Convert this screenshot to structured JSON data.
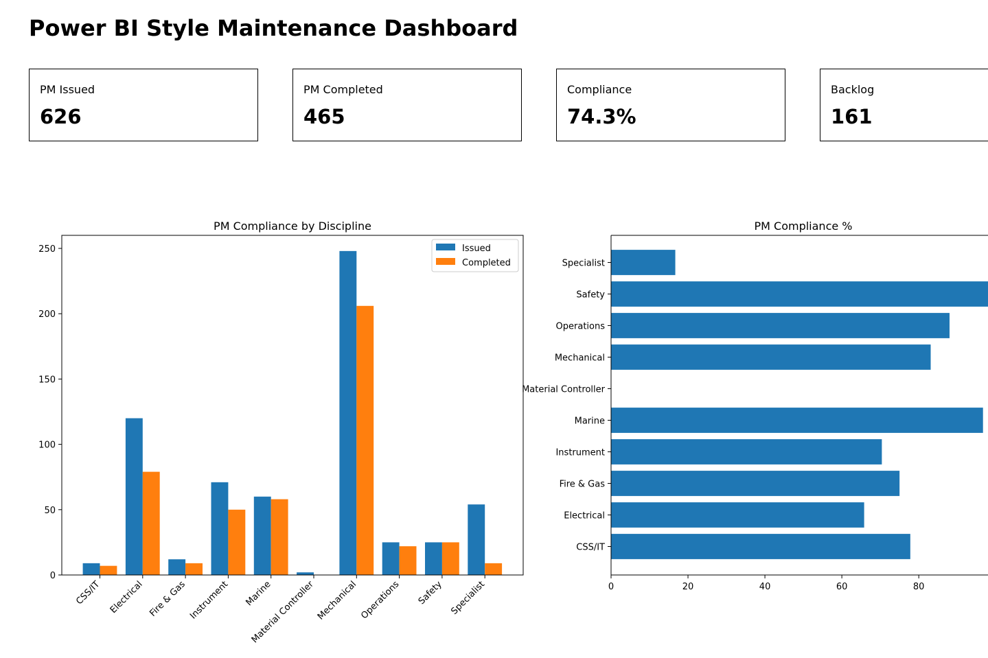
{
  "dashboard": {
    "title": "Power BI Style Maintenance Dashboard",
    "kpis": [
      {
        "label": "PM Issued",
        "value": "626"
      },
      {
        "label": "PM Completed",
        "value": "465"
      },
      {
        "label": "Compliance",
        "value": "74.3%"
      },
      {
        "label": "Backlog",
        "value": "161"
      }
    ]
  },
  "colors": {
    "issued": "#1f77b4",
    "completed": "#ff7f0e"
  },
  "chart_data": [
    {
      "type": "bar",
      "title": "PM Compliance by Discipline",
      "xlabel": "",
      "ylabel": "",
      "categories": [
        "CSS/IT",
        "Electrical",
        "Fire & Gas",
        "Instrument",
        "Marine",
        "Material Controller",
        "Mechanical",
        "Operations",
        "Safety",
        "Specialist"
      ],
      "series": [
        {
          "name": "Issued",
          "values": [
            9,
            120,
            12,
            71,
            60,
            2,
            248,
            25,
            25,
            54
          ]
        },
        {
          "name": "Completed",
          "values": [
            7,
            79,
            9,
            50,
            58,
            0,
            206,
            22,
            25,
            9
          ]
        }
      ],
      "ylim": [
        0,
        260
      ],
      "yticks": [
        0,
        50,
        100,
        150,
        200,
        250
      ],
      "legend": "top-right",
      "grid": false
    },
    {
      "type": "bar",
      "orientation": "horizontal",
      "title": "PM Compliance %",
      "xlabel": "",
      "ylabel": "",
      "categories": [
        "CSS/IT",
        "Electrical",
        "Fire & Gas",
        "Instrument",
        "Marine",
        "Material Controller",
        "Mechanical",
        "Operations",
        "Safety",
        "Specialist"
      ],
      "values": [
        77.8,
        65.8,
        75.0,
        70.4,
        96.7,
        0,
        83.1,
        88.0,
        100.0,
        16.7
      ],
      "xlim": [
        0,
        98
      ],
      "xticks": [
        0,
        20,
        40,
        60,
        80
      ],
      "grid": false
    }
  ]
}
